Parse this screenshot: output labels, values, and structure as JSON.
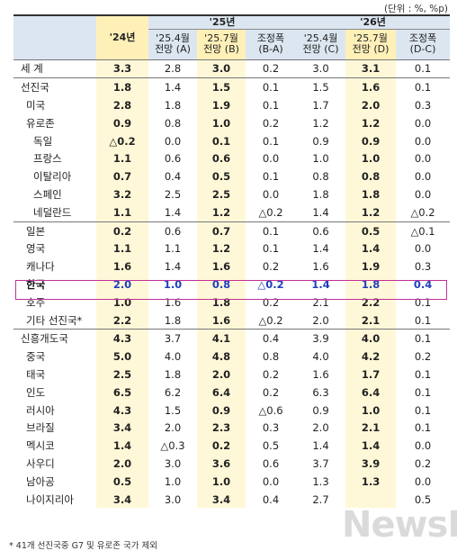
{
  "unit_note": "(단위 : %, %p)",
  "header": {
    "y24": "'24년",
    "y25": "'25년",
    "y26": "'26년",
    "c1": [
      "'25.4월",
      "전망 (A)"
    ],
    "c2": [
      "'25.7월",
      "전망 (B)"
    ],
    "c3": [
      "조정폭",
      "(B-A)"
    ],
    "c4": [
      "'25.4월",
      "전망 (C)"
    ],
    "c5": [
      "'25.7월",
      "전망 (D)"
    ],
    "c6": [
      "조정폭",
      "(D-C)"
    ]
  },
  "rows": [
    {
      "name": "세    계",
      "level": 0,
      "group_start": true,
      "bold": true,
      "v": [
        "3.3",
        "2.8",
        "3.0",
        "0.2",
        "3.0",
        "3.1",
        "0.1"
      ]
    },
    {
      "name": "선진국",
      "level": 0,
      "group_start": true,
      "bold": true,
      "v": [
        "1.8",
        "1.4",
        "1.5",
        "0.1",
        "1.5",
        "1.6",
        "0.1"
      ]
    },
    {
      "name": "미국",
      "level": 1,
      "v": [
        "2.8",
        "1.8",
        "1.9",
        "0.1",
        "1.7",
        "2.0",
        "0.3"
      ]
    },
    {
      "name": "유로존",
      "level": 1,
      "v": [
        "0.9",
        "0.8",
        "1.0",
        "0.2",
        "1.2",
        "1.2",
        "0.0"
      ]
    },
    {
      "name": "독일",
      "level": 2,
      "v": [
        "△0.2",
        "0.0",
        "0.1",
        "0.1",
        "0.9",
        "0.9",
        "0.0"
      ]
    },
    {
      "name": "프랑스",
      "level": 2,
      "v": [
        "1.1",
        "0.6",
        "0.6",
        "0.0",
        "1.0",
        "1.0",
        "0.0"
      ]
    },
    {
      "name": "이탈리아",
      "level": 2,
      "v": [
        "0.7",
        "0.4",
        "0.5",
        "0.1",
        "0.8",
        "0.8",
        "0.0"
      ]
    },
    {
      "name": "스페인",
      "level": 2,
      "v": [
        "3.2",
        "2.5",
        "2.5",
        "0.0",
        "1.8",
        "1.8",
        "0.0"
      ]
    },
    {
      "name": "네덜란드",
      "level": 2,
      "v": [
        "1.1",
        "1.4",
        "1.2",
        "△0.2",
        "1.4",
        "1.2",
        "△0.2"
      ]
    },
    {
      "name": "일본",
      "level": 1,
      "line": true,
      "v": [
        "0.2",
        "0.6",
        "0.7",
        "0.1",
        "0.6",
        "0.5",
        "△0.1"
      ]
    },
    {
      "name": "영국",
      "level": 1,
      "v": [
        "1.1",
        "1.1",
        "1.2",
        "0.1",
        "1.4",
        "1.4",
        "0.0"
      ]
    },
    {
      "name": "캐나다",
      "level": 1,
      "v": [
        "1.6",
        "1.4",
        "1.6",
        "0.2",
        "1.6",
        "1.9",
        "0.3"
      ]
    },
    {
      "name": "한국",
      "level": 1,
      "korea": true,
      "v": [
        "2.0",
        "1.0",
        "0.8",
        "△0.2",
        "1.4",
        "1.8",
        "0.4"
      ]
    },
    {
      "name": "호주",
      "level": 1,
      "v": [
        "1.0",
        "1.6",
        "1.8",
        "0.2",
        "2.1",
        "2.2",
        "0.1"
      ]
    },
    {
      "name": "기타 선진국*",
      "level": 1,
      "v": [
        "2.2",
        "1.8",
        "1.6",
        "△0.2",
        "2.0",
        "2.1",
        "0.1"
      ]
    },
    {
      "name": "신흥개도국",
      "level": 0,
      "group_start": true,
      "bold": true,
      "v": [
        "4.3",
        "3.7",
        "4.1",
        "0.4",
        "3.9",
        "4.0",
        "0.1"
      ]
    },
    {
      "name": "중국",
      "level": 1,
      "v": [
        "5.0",
        "4.0",
        "4.8",
        "0.8",
        "4.0",
        "4.2",
        "0.2"
      ]
    },
    {
      "name": "태국",
      "level": 1,
      "v": [
        "2.5",
        "1.8",
        "2.0",
        "0.2",
        "1.6",
        "1.7",
        "0.1"
      ]
    },
    {
      "name": "인도",
      "level": 1,
      "v": [
        "6.5",
        "6.2",
        "6.4",
        "0.2",
        "6.3",
        "6.4",
        "0.1"
      ]
    },
    {
      "name": "러시아",
      "level": 1,
      "v": [
        "4.3",
        "1.5",
        "0.9",
        "△0.6",
        "0.9",
        "1.0",
        "0.1"
      ]
    },
    {
      "name": "브라질",
      "level": 1,
      "v": [
        "3.4",
        "2.0",
        "2.3",
        "0.3",
        "2.0",
        "2.1",
        "0.1"
      ]
    },
    {
      "name": "멕시코",
      "level": 1,
      "v": [
        "1.4",
        "△0.3",
        "0.2",
        "0.5",
        "1.4",
        "1.4",
        "0.0"
      ]
    },
    {
      "name": "사우디",
      "level": 1,
      "v": [
        "2.0",
        "3.0",
        "3.6",
        "0.6",
        "3.7",
        "3.9",
        "0.2"
      ]
    },
    {
      "name": "남아공",
      "level": 1,
      "v": [
        "0.5",
        "1.0",
        "1.0",
        "0.0",
        "1.3",
        "1.3",
        "0.0"
      ]
    },
    {
      "name": "나이지리아",
      "level": 1,
      "v": [
        "3.4",
        "3.0",
        "3.4",
        "0.4",
        "2.7",
        "",
        "0.5"
      ]
    }
  ],
  "footnote": "* 41개 선진국중 G7 및 유로존 국가 제외",
  "watermark": "NewsDa"
}
